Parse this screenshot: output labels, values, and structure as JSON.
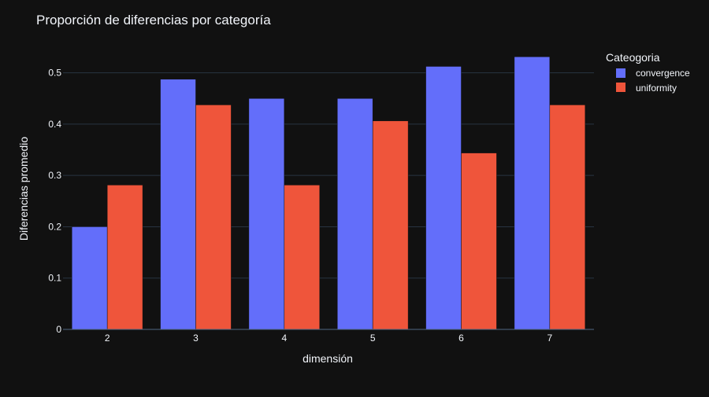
{
  "chart_data": {
    "type": "bar",
    "title": "Proporción de diferencias por categoría",
    "xlabel": "dimensión",
    "ylabel": "Diferencias promedio",
    "categories": [
      "2",
      "3",
      "4",
      "5",
      "6",
      "7"
    ],
    "series": [
      {
        "name": "convergence",
        "color": "#636efa",
        "values": [
          0.2,
          0.4875,
          0.45,
          0.45,
          0.5125,
          0.5313
        ]
      },
      {
        "name": "uniformity",
        "color": "#ef553b",
        "values": [
          0.2813,
          0.4375,
          0.2813,
          0.4063,
          0.3438,
          0.4375
        ]
      }
    ],
    "ylim": [
      0,
      0.55
    ],
    "yticks": [
      0,
      0.1,
      0.2,
      0.3,
      0.4,
      0.5
    ],
    "ytick_labels": [
      "0",
      "0.1",
      "0.2",
      "0.3",
      "0.4",
      "0.5"
    ],
    "grid": true,
    "legend": {
      "title": "Cateogoria",
      "placement": "top-right"
    },
    "colors": {
      "background": "#111111",
      "grid": "#283442",
      "text": "#f2f5fa"
    }
  }
}
